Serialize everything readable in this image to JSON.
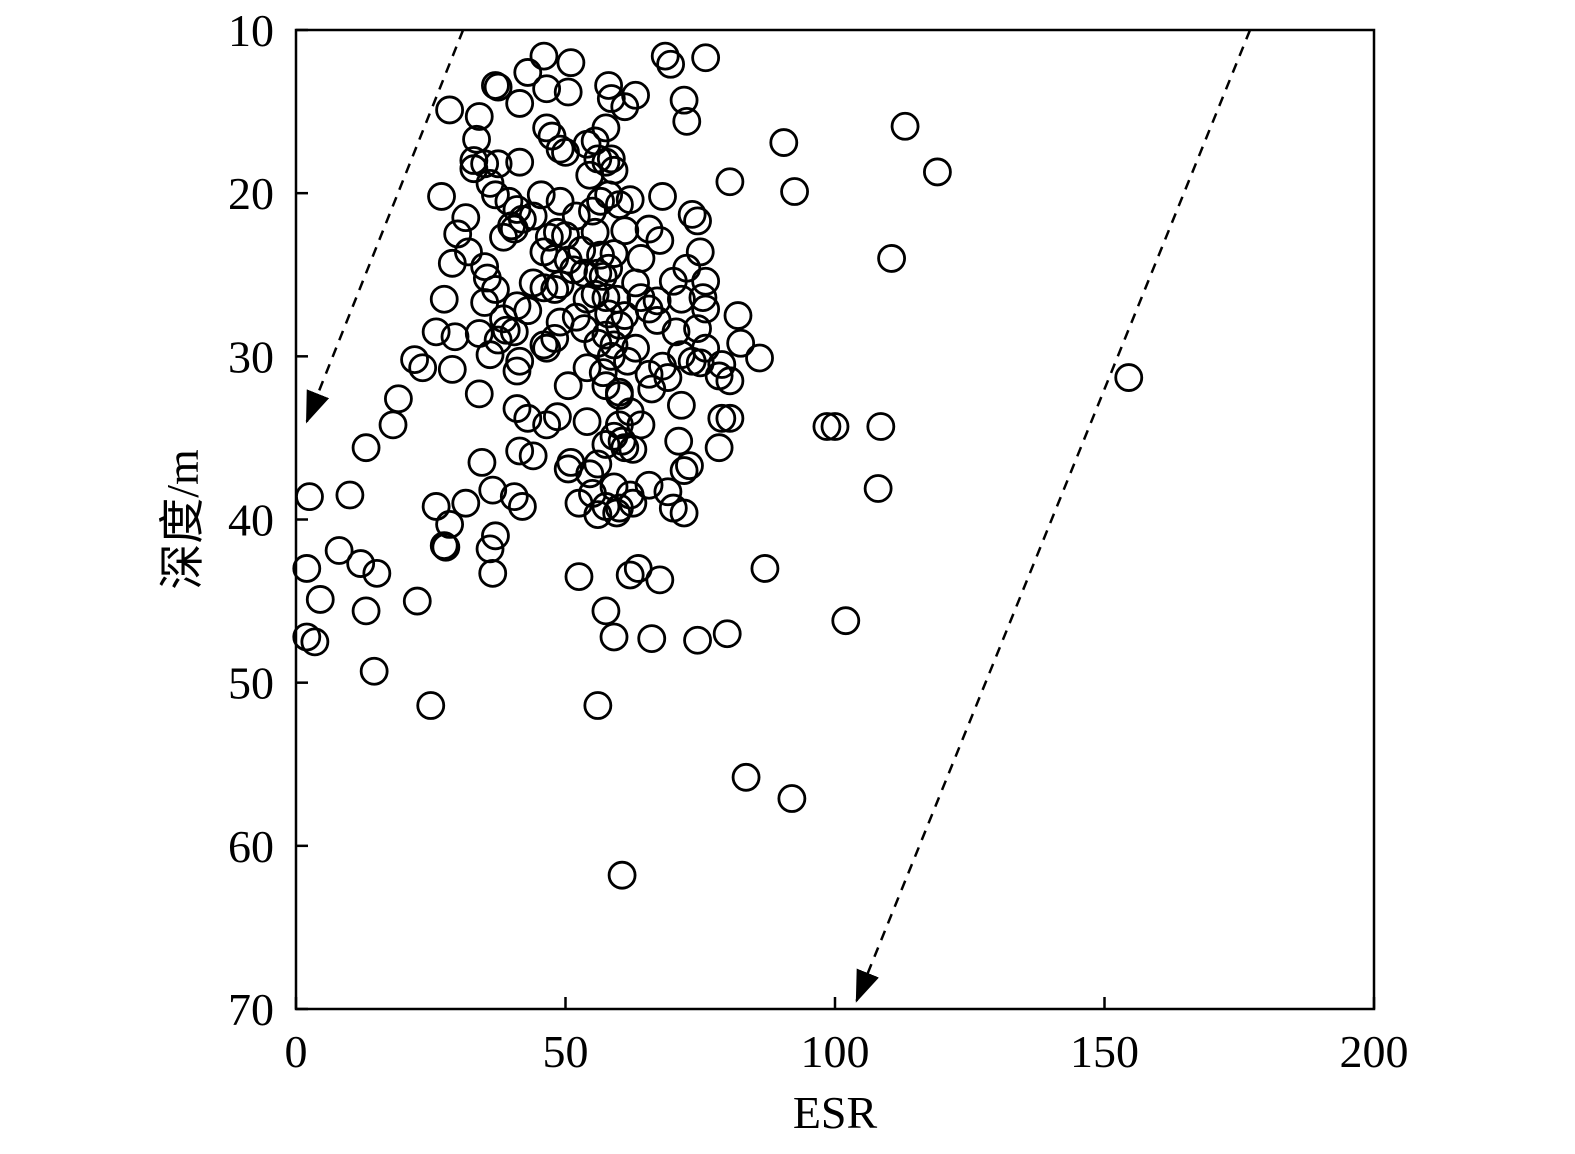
{
  "chart_data": {
    "type": "scatter",
    "title": "",
    "xlabel": "ESR",
    "ylabel": "深度/m",
    "xlim": [
      0,
      200
    ],
    "ylim": [
      10,
      70
    ],
    "y_inverted": true,
    "xticks": [
      0,
      50,
      100,
      150,
      200
    ],
    "yticks": [
      10,
      20,
      30,
      40,
      50,
      60,
      70
    ],
    "grid": false,
    "legend": "none",
    "marker": "open-circle",
    "colors": {
      "ink": "#000000",
      "background": "#ffffff"
    },
    "trend_lines": [
      {
        "style": "dashed",
        "arrow": "end",
        "from": [
          31,
          10
        ],
        "to": [
          2,
          34
        ]
      },
      {
        "style": "dashed",
        "arrow": "end",
        "from": [
          177,
          10
        ],
        "to": [
          104,
          69.5
        ]
      }
    ],
    "points": [
      [
        46,
        11.6
      ],
      [
        51,
        12
      ],
      [
        68.5,
        11.6
      ],
      [
        69.5,
        12.1
      ],
      [
        76,
        11.7
      ],
      [
        43,
        12.6
      ],
      [
        37,
        13.4
      ],
      [
        37.5,
        13.5
      ],
      [
        46.5,
        13.6
      ],
      [
        50.5,
        13.8
      ],
      [
        58,
        13.4
      ],
      [
        58.5,
        14.2
      ],
      [
        63,
        14
      ],
      [
        61,
        14.7
      ],
      [
        41.5,
        14.5
      ],
      [
        28.5,
        14.9
      ],
      [
        72,
        14.3
      ],
      [
        72.5,
        15.6
      ],
      [
        34,
        15.3
      ],
      [
        46.5,
        16
      ],
      [
        47.5,
        16.5
      ],
      [
        57.5,
        16
      ],
      [
        33.5,
        16.7
      ],
      [
        113,
        15.9
      ],
      [
        90.5,
        16.9
      ],
      [
        49,
        17.3
      ],
      [
        50,
        17.5
      ],
      [
        54,
        17
      ],
      [
        55.5,
        16.8
      ],
      [
        56,
        17.9
      ],
      [
        57.5,
        18.1
      ],
      [
        58.5,
        17.9
      ],
      [
        59,
        18.6
      ],
      [
        54.5,
        18.9
      ],
      [
        33,
        18
      ],
      [
        35,
        18.2
      ],
      [
        37.5,
        18.2
      ],
      [
        41.5,
        18.1
      ],
      [
        36,
        19.4
      ],
      [
        33,
        18.5
      ],
      [
        119,
        18.7
      ],
      [
        80.5,
        19.3
      ],
      [
        92.5,
        19.9
      ],
      [
        27,
        20.2
      ],
      [
        37,
        20.1
      ],
      [
        39.5,
        20.5
      ],
      [
        41,
        21
      ],
      [
        45.5,
        20.1
      ],
      [
        49,
        20.5
      ],
      [
        56.5,
        20.5
      ],
      [
        58,
        20.1
      ],
      [
        60,
        20.7
      ],
      [
        62,
        20.4
      ],
      [
        68,
        20.2
      ],
      [
        31.5,
        21.5
      ],
      [
        42,
        21.6
      ],
      [
        44,
        21.4
      ],
      [
        52,
        21.4
      ],
      [
        55,
        21.1
      ],
      [
        40,
        22
      ],
      [
        73.5,
        21.3
      ],
      [
        74.5,
        21.7
      ],
      [
        30,
        22.5
      ],
      [
        32,
        23.6
      ],
      [
        38.5,
        22.7
      ],
      [
        40.5,
        22.2
      ],
      [
        47,
        22.7
      ],
      [
        48.5,
        22.4
      ],
      [
        50,
        22.6
      ],
      [
        55.5,
        22.4
      ],
      [
        61,
        22.3
      ],
      [
        65.5,
        22.2
      ],
      [
        67.5,
        22.9
      ],
      [
        53,
        23.5
      ],
      [
        46,
        23.6
      ],
      [
        48,
        24
      ],
      [
        50.5,
        24.1
      ],
      [
        56.5,
        23.8
      ],
      [
        59,
        23.7
      ],
      [
        64,
        24
      ],
      [
        75,
        23.6
      ],
      [
        110.5,
        24
      ],
      [
        29,
        24.3
      ],
      [
        35,
        24.5
      ],
      [
        35.5,
        25.2
      ],
      [
        51.5,
        24.7
      ],
      [
        53.5,
        24.9
      ],
      [
        56,
        24.9
      ],
      [
        57,
        25.1
      ],
      [
        58,
        24.6
      ],
      [
        72.5,
        24.6
      ],
      [
        44,
        25.5
      ],
      [
        49,
        25.6
      ],
      [
        63,
        25.5
      ],
      [
        70,
        25.4
      ],
      [
        76,
        25.4
      ],
      [
        37,
        25.9
      ],
      [
        46,
        25.8
      ],
      [
        48,
        25.9
      ],
      [
        27.5,
        26.5
      ],
      [
        35,
        26.7
      ],
      [
        41,
        26.9
      ],
      [
        54,
        26.5
      ],
      [
        55.5,
        26.2
      ],
      [
        57.5,
        26.4
      ],
      [
        59.5,
        26.5
      ],
      [
        64,
        26.4
      ],
      [
        67,
        26.6
      ],
      [
        71.5,
        26.5
      ],
      [
        75.5,
        26.4
      ],
      [
        65.5,
        27.1
      ],
      [
        76,
        27.1
      ],
      [
        38.5,
        27.7
      ],
      [
        43,
        27.2
      ],
      [
        49,
        27.9
      ],
      [
        52,
        27.6
      ],
      [
        58,
        27.4
      ],
      [
        61,
        27.5
      ],
      [
        67,
        27.8
      ],
      [
        82,
        27.5
      ],
      [
        39,
        28.4
      ],
      [
        53.5,
        28.3
      ],
      [
        57.5,
        28.7
      ],
      [
        60,
        28.1
      ],
      [
        70.5,
        28.5
      ],
      [
        74.5,
        28.3
      ],
      [
        26,
        28.5
      ],
      [
        29.5,
        28.8
      ],
      [
        34,
        28.6
      ],
      [
        37.5,
        29
      ],
      [
        40.5,
        28.5
      ],
      [
        46,
        29.3
      ],
      [
        48,
        28.9
      ],
      [
        56,
        29.2
      ],
      [
        59,
        29.3
      ],
      [
        63,
        29.5
      ],
      [
        76,
        29.5
      ],
      [
        82.5,
        29.2
      ],
      [
        36,
        29.9
      ],
      [
        41.5,
        30.3
      ],
      [
        46.5,
        29.5
      ],
      [
        58.5,
        30
      ],
      [
        61.5,
        30.3
      ],
      [
        68,
        30.6
      ],
      [
        71.5,
        29.9
      ],
      [
        73.5,
        30.3
      ],
      [
        75,
        30.4
      ],
      [
        79,
        30.5
      ],
      [
        86,
        30.1
      ],
      [
        22,
        30.2
      ],
      [
        23.5,
        30.7
      ],
      [
        29,
        30.8
      ],
      [
        41,
        30.9
      ],
      [
        54,
        30.7
      ],
      [
        57,
        31
      ],
      [
        65.5,
        31.1
      ],
      [
        69,
        31.3
      ],
      [
        78.5,
        31.2
      ],
      [
        80.5,
        31.5
      ],
      [
        50.5,
        31.8
      ],
      [
        57.5,
        31.8
      ],
      [
        60,
        32.2
      ],
      [
        154.5,
        31.3
      ],
      [
        34,
        32.3
      ],
      [
        19,
        32.6
      ],
      [
        60,
        32.4
      ],
      [
        66,
        32
      ],
      [
        41,
        33.2
      ],
      [
        71.5,
        33
      ],
      [
        48.5,
        33.7
      ],
      [
        43,
        33.8
      ],
      [
        46.5,
        34.2
      ],
      [
        54,
        34
      ],
      [
        60,
        34.2
      ],
      [
        62,
        33.4
      ],
      [
        64,
        34.2
      ],
      [
        79,
        33.8
      ],
      [
        80.5,
        33.8
      ],
      [
        18,
        34.2
      ],
      [
        98.5,
        34.3
      ],
      [
        100,
        34.3
      ],
      [
        108.5,
        34.3
      ],
      [
        59,
        34.9
      ],
      [
        60.5,
        35.2
      ],
      [
        57.5,
        35.4
      ],
      [
        61,
        35.6
      ],
      [
        62.5,
        35.7
      ],
      [
        71,
        35.2
      ],
      [
        78.5,
        35.6
      ],
      [
        41.5,
        35.8
      ],
      [
        13,
        35.6
      ],
      [
        44,
        36.1
      ],
      [
        34.5,
        36.5
      ],
      [
        51,
        36.5
      ],
      [
        56,
        36.6
      ],
      [
        50.5,
        36.9
      ],
      [
        54.5,
        37.2
      ],
      [
        72,
        37
      ],
      [
        73,
        36.7
      ],
      [
        36.5,
        38.2
      ],
      [
        59,
        38
      ],
      [
        62,
        38.5
      ],
      [
        65.5,
        37.9
      ],
      [
        69,
        38.3
      ],
      [
        55,
        38.4
      ],
      [
        10,
        38.5
      ],
      [
        2.5,
        38.6
      ],
      [
        40.5,
        38.6
      ],
      [
        108,
        38.1
      ],
      [
        26,
        39.2
      ],
      [
        31.5,
        39
      ],
      [
        42,
        39.2
      ],
      [
        52.5,
        39
      ],
      [
        57.5,
        39.2
      ],
      [
        60,
        39.3
      ],
      [
        62.5,
        39
      ],
      [
        70,
        39.3
      ],
      [
        72,
        39.6
      ],
      [
        56,
        39.7
      ],
      [
        59.5,
        39.6
      ],
      [
        28.5,
        40.3
      ],
      [
        37,
        41
      ],
      [
        27.5,
        41.6
      ],
      [
        27.8,
        41.7
      ],
      [
        36,
        41.8
      ],
      [
        8,
        41.9
      ],
      [
        12,
        42.7
      ],
      [
        2,
        43
      ],
      [
        15,
        43.3
      ],
      [
        36.5,
        43.3
      ],
      [
        52.5,
        43.5
      ],
      [
        63.5,
        43
      ],
      [
        62,
        43.4
      ],
      [
        67.5,
        43.7
      ],
      [
        87,
        43
      ],
      [
        4.5,
        44.9
      ],
      [
        22.5,
        45
      ],
      [
        13,
        45.6
      ],
      [
        57.5,
        45.6
      ],
      [
        102,
        46.2
      ],
      [
        2,
        47.2
      ],
      [
        3.5,
        47.5
      ],
      [
        59,
        47.2
      ],
      [
        66,
        47.3
      ],
      [
        74.5,
        47.4
      ],
      [
        80,
        47
      ],
      [
        14.5,
        49.3
      ],
      [
        25,
        51.4
      ],
      [
        56,
        51.4
      ],
      [
        83.5,
        55.8
      ],
      [
        92,
        57.1
      ],
      [
        60.5,
        61.8
      ]
    ]
  }
}
